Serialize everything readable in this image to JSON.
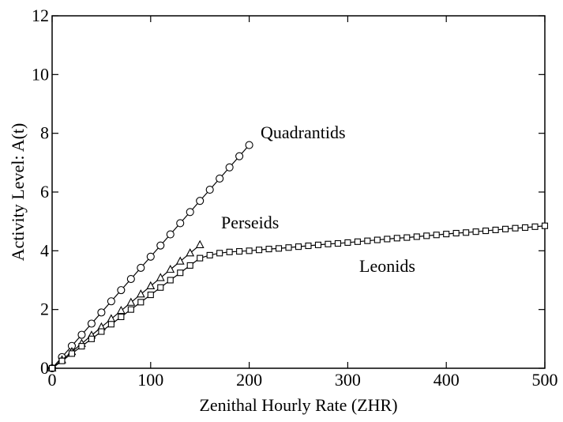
{
  "chart_data": {
    "type": "line",
    "xlabel": "Zenithal Hourly Rate (ZHR)",
    "ylabel": "Activity Level: A(t)",
    "xlim": [
      0,
      500
    ],
    "xticks": [
      0,
      100,
      200,
      300,
      400,
      500
    ],
    "ylim": [
      0,
      12
    ],
    "yticks": [
      0,
      2,
      4,
      6,
      8,
      10,
      12
    ],
    "color": "#000000",
    "series": [
      {
        "name": "Quadrantids",
        "marker": "circle",
        "x": [
          0,
          10,
          20,
          30,
          40,
          50,
          60,
          70,
          80,
          90,
          100,
          110,
          120,
          130,
          140,
          150,
          160,
          170,
          180,
          190,
          200
        ],
        "values": [
          0,
          0.38,
          0.76,
          1.14,
          1.52,
          1.9,
          2.28,
          2.66,
          3.04,
          3.42,
          3.8,
          4.18,
          4.56,
          4.94,
          5.32,
          5.7,
          6.08,
          6.46,
          6.84,
          7.22,
          7.6
        ]
      },
      {
        "name": "Perseids",
        "marker": "triangle",
        "x": [
          0,
          10,
          20,
          30,
          40,
          50,
          60,
          70,
          80,
          90,
          100,
          110,
          120,
          130,
          140,
          150
        ],
        "values": [
          0,
          0.28,
          0.56,
          0.84,
          1.12,
          1.4,
          1.68,
          1.96,
          2.24,
          2.52,
          2.8,
          3.08,
          3.36,
          3.64,
          3.92,
          4.2
        ]
      },
      {
        "name": "Leonids",
        "marker": "square",
        "x": [
          0,
          10,
          20,
          30,
          40,
          50,
          60,
          70,
          80,
          90,
          100,
          110,
          120,
          130,
          140,
          150,
          160,
          170,
          180,
          190,
          200,
          210,
          220,
          230,
          240,
          250,
          260,
          270,
          280,
          290,
          300,
          310,
          320,
          330,
          340,
          350,
          360,
          370,
          380,
          390,
          400,
          410,
          420,
          430,
          440,
          450,
          460,
          470,
          480,
          490,
          500
        ],
        "values": [
          0,
          0.25,
          0.5,
          0.75,
          1,
          1.25,
          1.5,
          1.75,
          2,
          2.25,
          2.5,
          2.75,
          3,
          3.25,
          3.5,
          3.75,
          3.85,
          3.92,
          3.96,
          3.98,
          4,
          4.03,
          4.06,
          4.08,
          4.11,
          4.14,
          4.17,
          4.2,
          4.23,
          4.25,
          4.28,
          4.31,
          4.34,
          4.37,
          4.4,
          4.43,
          4.45,
          4.48,
          4.51,
          4.54,
          4.57,
          4.6,
          4.62,
          4.65,
          4.68,
          4.71,
          4.74,
          4.77,
          4.79,
          4.82,
          4.85
        ]
      }
    ]
  }
}
